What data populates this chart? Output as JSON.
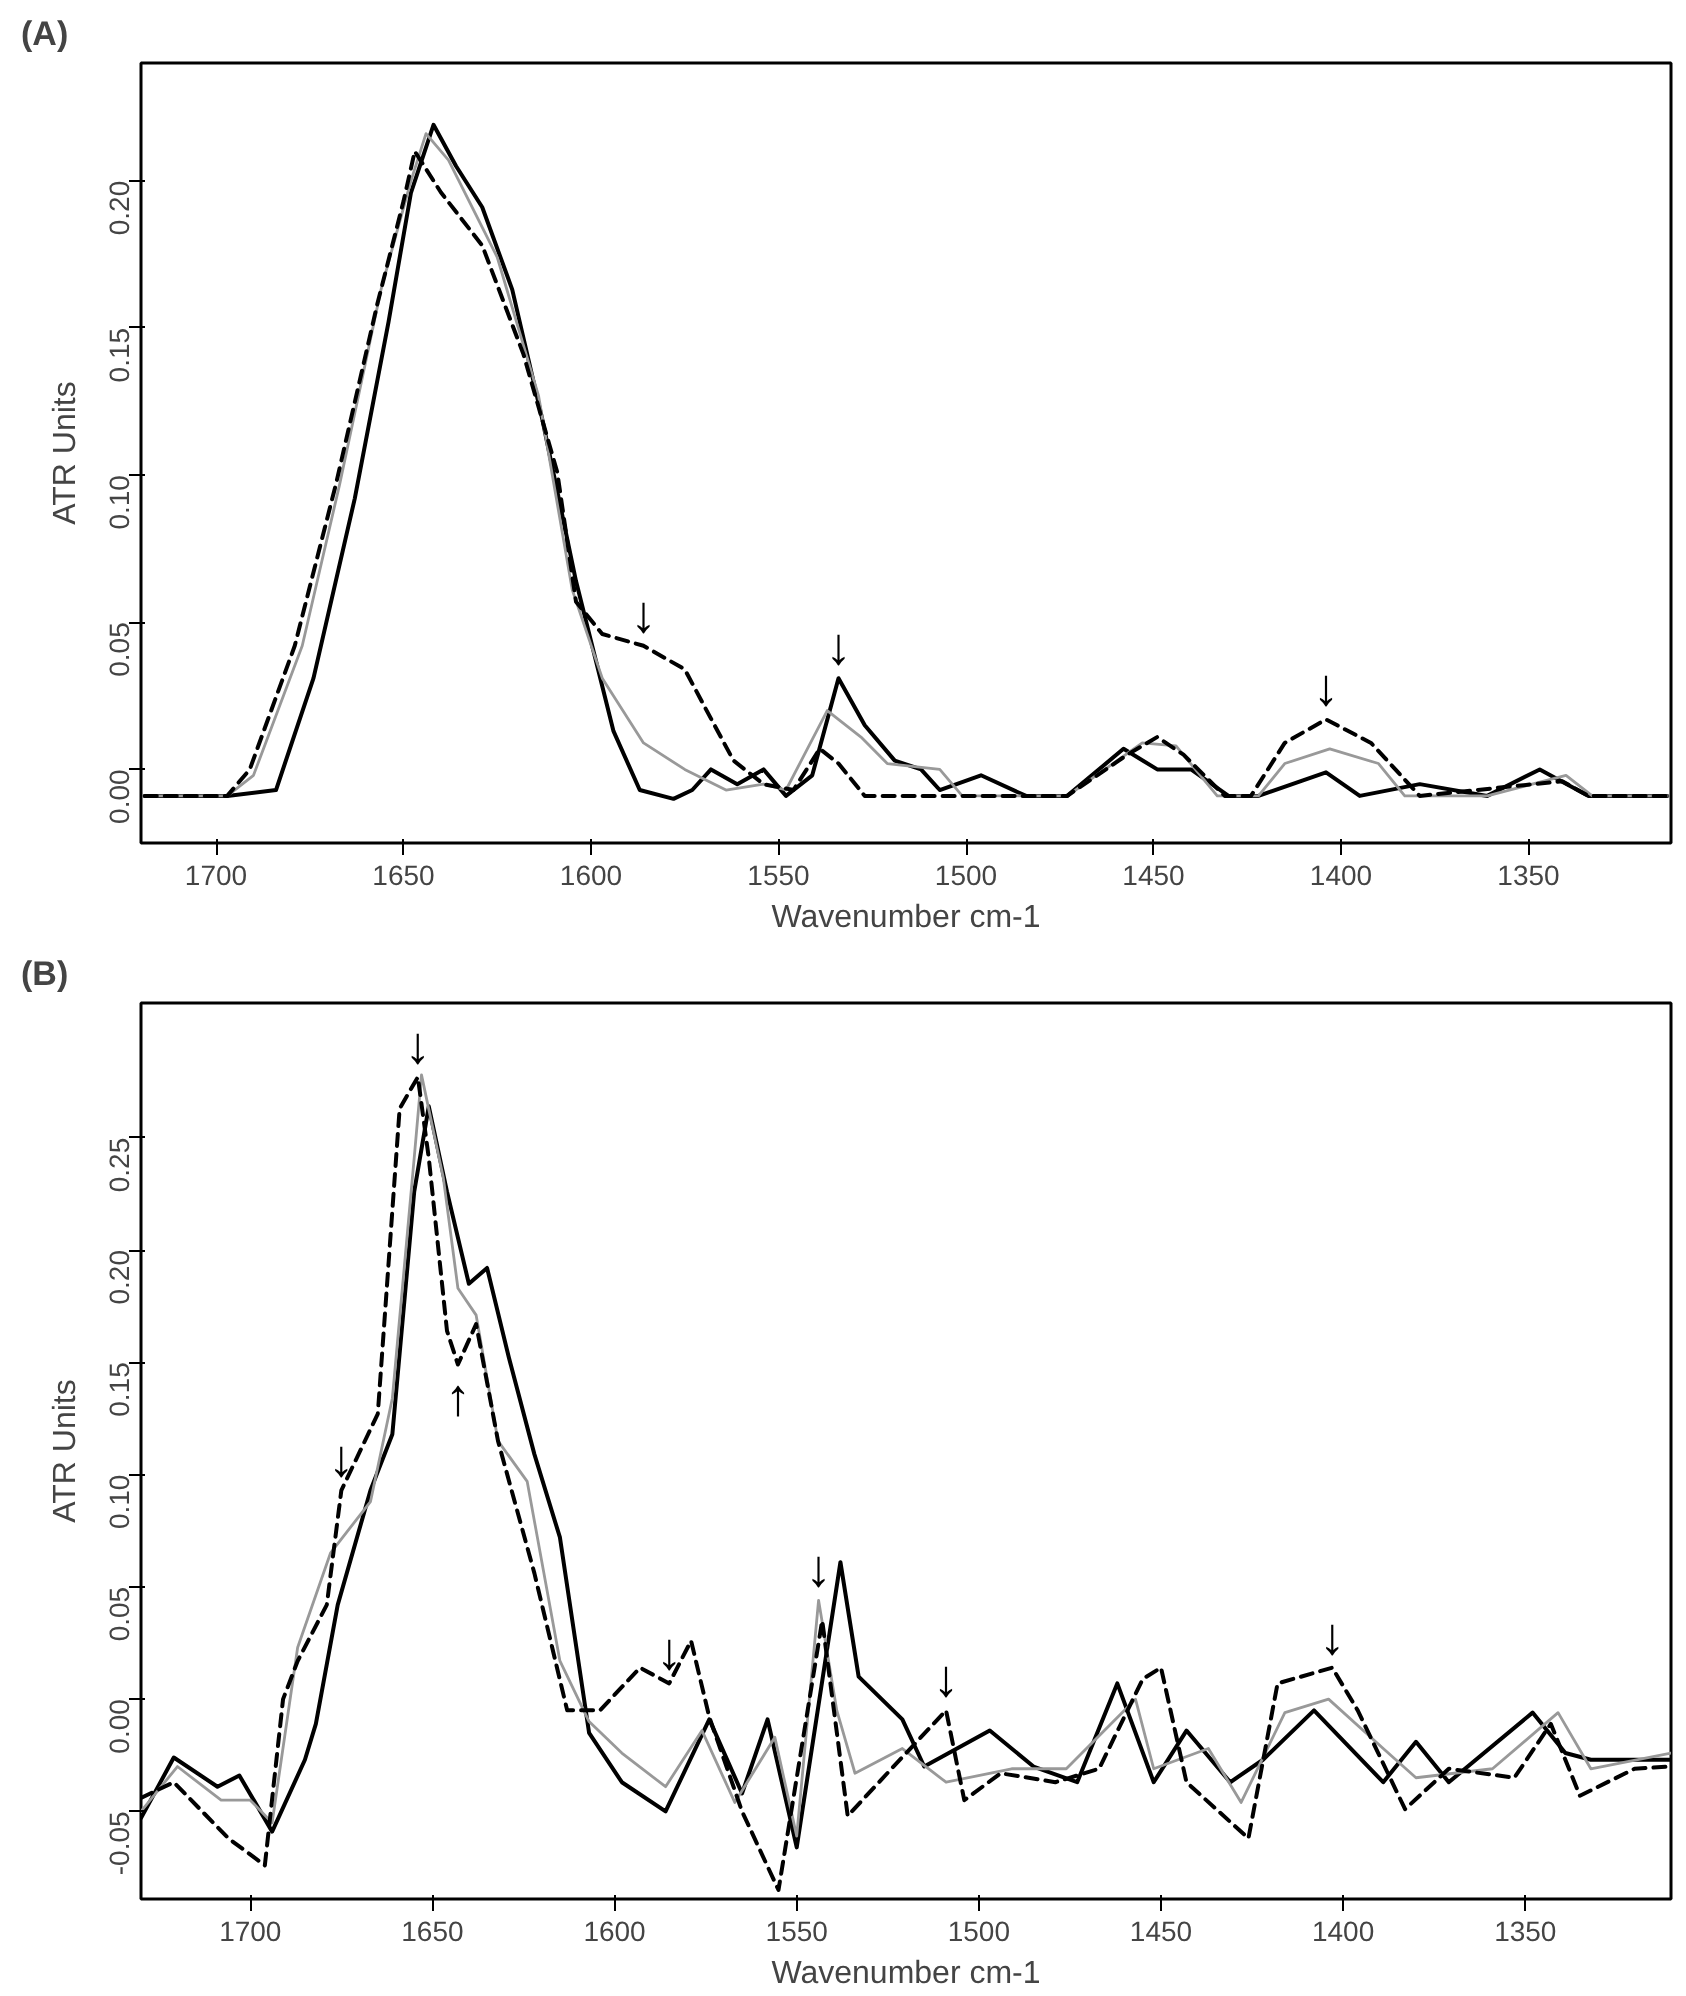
{
  "chart_data": [
    {
      "type": "line",
      "title": "(A)",
      "xlabel": "Wavenumber cm-1",
      "ylabel": "ATR Units",
      "xlim": [
        1720,
        1312
      ],
      "ylim": [
        -0.025,
        0.24
      ],
      "xticks": [
        1700,
        1650,
        1600,
        1550,
        1500,
        1450,
        1400,
        1350
      ],
      "yticks": [
        {
          "value": 0,
          "label": "0.00"
        },
        {
          "value": 0.05,
          "label": "0.05"
        },
        {
          "value": 0.1,
          "label": "0.10"
        },
        {
          "value": 0.15,
          "label": "0.15"
        },
        {
          "value": 0.2,
          "label": "0.20"
        }
      ],
      "grid": false,
      "marker": "none",
      "series": [
        {
          "color": "#000000",
          "line_style": "solid",
          "x": [
            1719,
            1697,
            1684,
            1674,
            1663,
            1654,
            1648,
            1642,
            1636,
            1629,
            1621,
            1613,
            1604,
            1594,
            1587,
            1578,
            1573,
            1568,
            1561,
            1554,
            1548,
            1541,
            1534,
            1527,
            1519,
            1512,
            1507,
            1496,
            1484,
            1473,
            1458,
            1449,
            1440,
            1430,
            1422,
            1404,
            1395,
            1379,
            1361,
            1347,
            1334,
            1313
          ],
          "values": [
            -0.009,
            -0.009,
            -0.007,
            0.031,
            0.092,
            0.152,
            0.196,
            0.219,
            0.205,
            0.191,
            0.163,
            0.119,
            0.064,
            0.013,
            -0.007,
            -0.01,
            -0.007,
            0.0,
            -0.005,
            0.0,
            -0.009,
            -0.002,
            0.031,
            0.015,
            0.003,
            0.0,
            -0.007,
            -0.002,
            -0.009,
            -0.009,
            0.007,
            0.0,
            0.0,
            -0.009,
            -0.009,
            -0.001,
            -0.009,
            -0.005,
            -0.009,
            0.0,
            -0.009,
            -0.009
          ]
        },
        {
          "color": "#999999",
          "line_style": "solid",
          "x": [
            1719,
            1697,
            1690,
            1677,
            1667,
            1656,
            1648,
            1644,
            1638,
            1625,
            1614,
            1605,
            1597,
            1586,
            1575,
            1564,
            1554,
            1548,
            1537,
            1528,
            1521,
            1507,
            1501,
            1473,
            1453,
            1444,
            1433,
            1422,
            1415,
            1403,
            1390,
            1383,
            1361,
            1340,
            1333,
            1313
          ],
          "values": [
            -0.009,
            -0.009,
            -0.002,
            0.042,
            0.097,
            0.163,
            0.2,
            0.216,
            0.207,
            0.174,
            0.127,
            0.061,
            0.031,
            0.009,
            0.0,
            -0.007,
            -0.005,
            -0.007,
            0.02,
            0.011,
            0.002,
            0.0,
            -0.009,
            -0.009,
            0.009,
            0.008,
            -0.009,
            -0.009,
            0.002,
            0.007,
            0.002,
            -0.009,
            -0.009,
            -0.002,
            -0.009,
            -0.009
          ]
        },
        {
          "color": "#000000",
          "line_style": "dashed",
          "x": [
            1719,
            1697,
            1691,
            1679,
            1668,
            1657,
            1650,
            1647,
            1640,
            1629,
            1618,
            1609,
            1604,
            1597,
            1586,
            1575,
            1570,
            1562,
            1554,
            1546,
            1539,
            1534,
            1527,
            1507,
            1473,
            1457,
            1449,
            1442,
            1431,
            1424,
            1415,
            1404,
            1392,
            1379,
            1341,
            1334,
            1313
          ],
          "values": [
            -0.009,
            -0.009,
            0.0,
            0.042,
            0.097,
            0.158,
            0.193,
            0.21,
            0.196,
            0.178,
            0.141,
            0.101,
            0.057,
            0.046,
            0.042,
            0.034,
            0.022,
            0.003,
            -0.005,
            -0.007,
            0.007,
            0.002,
            -0.009,
            -0.009,
            -0.009,
            0.005,
            0.011,
            0.005,
            -0.009,
            -0.009,
            0.009,
            0.017,
            0.009,
            -0.009,
            -0.004,
            -0.009,
            -0.009
          ]
        }
      ],
      "annotations": [
        {
          "text": "↓",
          "x": 1586,
          "y": 0.042
        },
        {
          "text": "↓",
          "x": 1534,
          "y": 0.031
        },
        {
          "text": "↓",
          "x": 1404,
          "y": 0.017
        }
      ]
    },
    {
      "type": "line",
      "title": "(B)",
      "xlabel": "Wavenumber cm-1",
      "ylabel": "ATR Units",
      "xlim": [
        1730,
        1310
      ],
      "ylim": [
        -0.089,
        0.31
      ],
      "xticks": [
        1700,
        1650,
        1600,
        1550,
        1500,
        1450,
        1400,
        1350
      ],
      "yticks": [
        {
          "value": -0.05,
          "label": "-0.05"
        },
        {
          "value": 0,
          "label": "0.00"
        },
        {
          "value": 0.05,
          "label": "0.05"
        },
        {
          "value": 0.1,
          "label": "0.10"
        },
        {
          "value": 0.15,
          "label": "0.15"
        },
        {
          "value": 0.2,
          "label": "0.20"
        },
        {
          "value": 0.25,
          "label": "0.25"
        }
      ],
      "grid": false,
      "marker": "none",
      "series": [
        {
          "color": "#000000",
          "line_style": "solid",
          "x": [
            1730,
            1721,
            1709,
            1703,
            1694,
            1685,
            1682,
            1676,
            1667,
            1661,
            1655,
            1651,
            1646,
            1640,
            1635,
            1629,
            1622,
            1615,
            1607,
            1598,
            1586,
            1574,
            1565,
            1558,
            1550,
            1538,
            1533,
            1521,
            1515,
            1497,
            1485,
            1473,
            1462,
            1452,
            1443,
            1431,
            1422,
            1408,
            1389,
            1380,
            1371,
            1348,
            1339,
            1332,
            1310
          ],
          "values": [
            -0.053,
            -0.026,
            -0.039,
            -0.034,
            -0.059,
            -0.027,
            -0.011,
            0.042,
            0.093,
            0.118,
            0.226,
            0.264,
            0.226,
            0.185,
            0.192,
            0.152,
            0.109,
            0.072,
            -0.015,
            -0.037,
            -0.05,
            -0.009,
            -0.042,
            -0.009,
            -0.066,
            0.061,
            0.01,
            -0.009,
            -0.03,
            -0.014,
            -0.03,
            -0.037,
            0.007,
            -0.037,
            -0.014,
            -0.037,
            -0.027,
            -0.005,
            -0.037,
            -0.019,
            -0.037,
            -0.006,
            -0.024,
            -0.027,
            -0.027
          ]
        },
        {
          "color": "#999999",
          "line_style": "solid",
          "x": [
            1730,
            1720,
            1708,
            1700,
            1694,
            1687,
            1678,
            1667,
            1661,
            1655,
            1653,
            1647,
            1643,
            1638,
            1632,
            1624,
            1615,
            1607,
            1598,
            1586,
            1576,
            1567,
            1556,
            1550,
            1544,
            1539,
            1534,
            1521,
            1509,
            1491,
            1476,
            1457,
            1452,
            1437,
            1428,
            1416,
            1404,
            1389,
            1380,
            1359,
            1341,
            1332,
            1310
          ],
          "values": [
            -0.05,
            -0.03,
            -0.045,
            -0.045,
            -0.055,
            0.023,
            0.065,
            0.088,
            0.134,
            0.241,
            0.278,
            0.232,
            0.183,
            0.171,
            0.115,
            0.097,
            0.017,
            -0.01,
            -0.024,
            -0.039,
            -0.014,
            -0.046,
            -0.017,
            -0.061,
            0.044,
            -0.005,
            -0.033,
            -0.022,
            -0.037,
            -0.031,
            -0.031,
            0.0,
            -0.031,
            -0.022,
            -0.046,
            -0.006,
            0.0,
            -0.022,
            -0.035,
            -0.031,
            -0.006,
            -0.031,
            -0.024
          ]
        },
        {
          "color": "#000000",
          "line_style": "dashed",
          "x": [
            1730,
            1721,
            1706,
            1696,
            1691,
            1687,
            1679,
            1675,
            1665,
            1659,
            1654,
            1651,
            1646,
            1643,
            1638,
            1632,
            1622,
            1613,
            1604,
            1593,
            1585,
            1579,
            1574,
            1565,
            1555,
            1543,
            1536,
            1524,
            1509,
            1504,
            1494,
            1479,
            1467,
            1455,
            1450,
            1443,
            1426,
            1418,
            1403,
            1396,
            1383,
            1371,
            1353,
            1343,
            1335,
            1320,
            1310
          ],
          "values": [
            -0.044,
            -0.037,
            -0.062,
            -0.074,
            0.0,
            0.017,
            0.042,
            0.093,
            0.127,
            0.263,
            0.277,
            0.241,
            0.164,
            0.149,
            0.167,
            0.115,
            0.056,
            -0.005,
            -0.005,
            0.014,
            0.007,
            0.026,
            -0.008,
            -0.05,
            -0.085,
            0.035,
            -0.052,
            -0.031,
            -0.005,
            -0.045,
            -0.033,
            -0.037,
            -0.031,
            0.009,
            0.014,
            -0.037,
            -0.062,
            0.007,
            0.014,
            -0.005,
            -0.049,
            -0.031,
            -0.035,
            -0.011,
            -0.043,
            -0.031,
            -0.03
          ]
        }
      ],
      "annotations": [
        {
          "text": "↓",
          "x": 1654,
          "y": 0.277
        },
        {
          "text": "↓",
          "x": 1675,
          "y": 0.093
        },
        {
          "text": "↑",
          "x": 1643,
          "y": 0.149
        },
        {
          "text": "↓",
          "x": 1585,
          "y": 0.007
        },
        {
          "text": "↓",
          "x": 1544,
          "y": 0.044
        },
        {
          "text": "↓",
          "x": 1509,
          "y": -0.005
        },
        {
          "text": "↓",
          "x": 1403,
          "y": 0.014
        }
      ]
    }
  ]
}
